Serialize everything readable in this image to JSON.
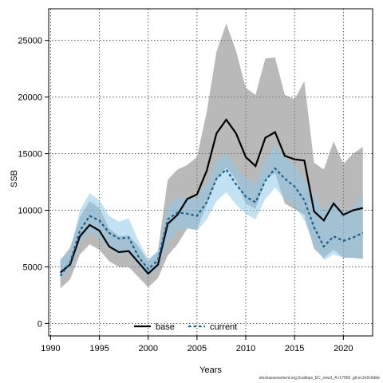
{
  "chart_data": {
    "type": "line",
    "title": "",
    "xlabel": "Years",
    "ylabel": "SSB",
    "xlim": [
      1989.8,
      2023.0
    ],
    "ylim": [
      -1100,
      27800
    ],
    "x_ticks": [
      1990,
      1995,
      2000,
      2005,
      2010,
      2015,
      2020
    ],
    "y_ticks": [
      0,
      5000,
      10000,
      15000,
      20000,
      25000
    ],
    "grid": true,
    "legend_position": "bottom-center",
    "x": [
      1991,
      1992,
      1993,
      1994,
      1995,
      1996,
      1997,
      1998,
      1999,
      2000,
      2001,
      2002,
      2003,
      2004,
      2005,
      2006,
      2007,
      2008,
      2009,
      2010,
      2011,
      2012,
      2013,
      2014,
      2015,
      2016,
      2017,
      2018,
      2019,
      2020,
      2021,
      2022
    ],
    "series": [
      {
        "name": "base",
        "color": "#000000",
        "line_style": "solid",
        "band_color": "#808080",
        "values": [
          4500,
          5200,
          7700,
          8700,
          8200,
          6800,
          6300,
          6400,
          5400,
          4400,
          5200,
          8800,
          9600,
          11000,
          11400,
          13500,
          16800,
          18000,
          16800,
          14700,
          13900,
          16400,
          16900,
          14800,
          14500,
          14400,
          9900,
          9100,
          10600,
          9600,
          10000,
          10200
        ],
        "lower": [
          3100,
          3900,
          6100,
          7000,
          6500,
          5500,
          5000,
          5000,
          4100,
          3200,
          4000,
          6000,
          7000,
          8400,
          8300,
          10500,
          12700,
          13800,
          12700,
          10600,
          10100,
          12700,
          13300,
          10600,
          10100,
          9600,
          6600,
          5800,
          6500,
          5800,
          5800,
          5700
        ],
        "upper": [
          5600,
          6700,
          9400,
          10800,
          10200,
          8400,
          7700,
          7800,
          6800,
          5500,
          6400,
          12700,
          13600,
          14000,
          14700,
          18700,
          24000,
          26500,
          24100,
          20800,
          20200,
          23400,
          23500,
          20200,
          19800,
          21400,
          14200,
          13600,
          16100,
          14100,
          15000,
          15600
        ]
      },
      {
        "name": "current",
        "color": "#1a5f8a",
        "line_style": "dashed",
        "band_color": "#8fcbea",
        "values": [
          4200,
          5400,
          8200,
          9500,
          9100,
          8000,
          7500,
          7600,
          5900,
          4800,
          5600,
          9200,
          9800,
          9700,
          9500,
          10700,
          12800,
          13600,
          12300,
          11200,
          10700,
          12600,
          13700,
          12800,
          12100,
          10900,
          8500,
          6800,
          7700,
          7300,
          7600,
          8000
        ],
        "lower": [
          3900,
          4900,
          7100,
          8100,
          7600,
          6600,
          6100,
          6200,
          5100,
          4100,
          4900,
          7200,
          8200,
          8400,
          8200,
          9200,
          10800,
          11600,
          10500,
          9700,
          9200,
          11000,
          12000,
          11000,
          10400,
          9100,
          6900,
          5600,
          6100,
          5800,
          5800,
          5700
        ],
        "upper": [
          5700,
          6400,
          10000,
          11500,
          10900,
          9500,
          9000,
          9300,
          7300,
          5700,
          6400,
          10300,
          11100,
          11100,
          11000,
          12400,
          14300,
          15100,
          13800,
          12800,
          12300,
          14400,
          15700,
          14700,
          14000,
          12800,
          11300,
          9900,
          10900,
          9800,
          10200,
          11500
        ]
      }
    ]
  },
  "caption": "stockassessment.org,Scallops_EC_new1_A r17565 ,git:ec2e0c6dde"
}
